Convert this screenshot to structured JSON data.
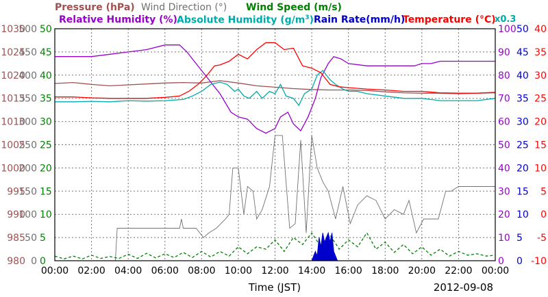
{
  "chart_data": {
    "type": "line",
    "title_row1": {
      "pressure": "Pressure (hPa)",
      "wind_dir": "Wind Direction (°)",
      "wind_speed": "Wind Speed (m/s)"
    },
    "title_row2": {
      "rel_humidity": "Relative Humidity (%)",
      "abs_humidity": "Absolute Humidity (g/m",
      "abs_humidity_sup": "3",
      "abs_humidity_end": ")",
      "rain_rate": "Rain Rate(mm/h)",
      "temperature": "Temperature (°C)",
      "scale_note": "x0.3"
    },
    "xlabel": "Time (JST)",
    "date": "2012-09-08",
    "x_ticks": [
      "00:00",
      "02:00",
      "04:00",
      "06:00",
      "08:00",
      "10:00",
      "12:00",
      "14:00",
      "16:00",
      "18:00",
      "20:00",
      "22:00",
      "00:00"
    ],
    "axes": {
      "pressure": {
        "color": "#a05050",
        "ticks": [
          "980",
          "985",
          "990",
          "995",
          "1000",
          "1005",
          "1010",
          "1015",
          "1020",
          "1025",
          "1030"
        ],
        "range": [
          980,
          1030
        ]
      },
      "wind_dir": {
        "color": "#707070",
        "ticks": [
          "0",
          "50",
          "100",
          "150",
          "200",
          "250",
          "300",
          "350",
          "400",
          "450",
          "500"
        ],
        "range": [
          0,
          500
        ]
      },
      "wind_speed": {
        "color": "#008000",
        "ticks": [
          "0",
          "5",
          "10",
          "15",
          "20",
          "25",
          "30",
          "35",
          "40",
          "45",
          "50"
        ],
        "range": [
          0,
          50
        ]
      },
      "rel_humidity": {
        "color": "#9900cc",
        "ticks": [
          "0",
          "10",
          "20",
          "30",
          "40",
          "50",
          "60",
          "70",
          "80",
          "90",
          "100"
        ],
        "range": [
          0,
          100
        ]
      },
      "rain_rate": {
        "color": "#0000cc",
        "ticks": [
          "0",
          "5",
          "10",
          "15",
          "20",
          "25",
          "30",
          "35",
          "40",
          "45",
          "50"
        ],
        "range": [
          0,
          50
        ]
      },
      "temperature": {
        "color": "#ff0000",
        "ticks": [
          "-10",
          "-5",
          "0",
          "5",
          "10",
          "15",
          "20",
          "25",
          "30",
          "35",
          "40"
        ],
        "range": [
          -10,
          40
        ]
      }
    },
    "series": [
      {
        "key": "pressure",
        "color": "#a05050",
        "x": [
          0,
          1,
          2,
          3,
          4,
          5,
          6,
          7,
          8,
          9,
          10,
          11,
          12,
          13,
          14,
          15,
          16,
          17,
          18,
          19,
          20,
          21,
          22,
          23,
          24
        ],
        "y": [
          1018.2,
          1018.4,
          1018.0,
          1017.7,
          1017.9,
          1018.1,
          1018.3,
          1018.4,
          1018.3,
          1018.8,
          1018.3,
          1017.7,
          1017.4,
          1017.1,
          1016.9,
          1016.8,
          1016.8,
          1016.7,
          1016.4,
          1016.2,
          1016.1,
          1016.1,
          1016.0,
          1016.1,
          1016.2
        ]
      },
      {
        "key": "wind_dir",
        "color": "#707070",
        "x": [
          0,
          3.3,
          3.4,
          5,
          6.8,
          6.9,
          7.0,
          7.7,
          8.1,
          8.4,
          8.8,
          9.3,
          9.5,
          9.7,
          10,
          10.3,
          10.5,
          10.8,
          11.0,
          11.3,
          11.7,
          12.0,
          12.4,
          12.8,
          13.1,
          13.4,
          13.7,
          14.0,
          14.3,
          14.6,
          14.9,
          15.3,
          15.7,
          16.1,
          16.5,
          17.0,
          17.5,
          18.0,
          18.5,
          19.0,
          19.3,
          19.7,
          20.1,
          20.5,
          20.9,
          21.3,
          21.6,
          22,
          23,
          24
        ],
        "y": [
          0,
          0,
          70,
          70,
          70,
          90,
          70,
          70,
          50,
          60,
          70,
          90,
          100,
          200,
          200,
          100,
          160,
          150,
          90,
          110,
          160,
          270,
          270,
          70,
          80,
          260,
          60,
          270,
          200,
          170,
          150,
          90,
          160,
          80,
          120,
          140,
          130,
          90,
          110,
          100,
          130,
          60,
          90,
          90,
          90,
          150,
          150,
          160,
          160,
          160
        ]
      },
      {
        "key": "wind_speed",
        "color": "#008000",
        "dash": true,
        "x": [
          0,
          0.5,
          1,
          1.5,
          2,
          2.5,
          3,
          3.5,
          4,
          4.5,
          5,
          5.5,
          6,
          6.5,
          7,
          7.5,
          8,
          8.5,
          9,
          9.5,
          10,
          10.5,
          11,
          11.5,
          12,
          12.5,
          13,
          13.5,
          14,
          14.5,
          15,
          15.5,
          16,
          16.5,
          17,
          17.5,
          18,
          18.5,
          19,
          19.5,
          20,
          20.5,
          21,
          21.5,
          22,
          22.5,
          23,
          23.5,
          24
        ],
        "y": [
          1,
          0.4,
          1,
          0.4,
          1.2,
          0.5,
          0.9,
          0.5,
          1.4,
          0.5,
          1.6,
          0.6,
          1.5,
          0.7,
          1.8,
          0.7,
          2,
          0.8,
          2,
          1,
          3,
          1.5,
          3,
          2.5,
          4.5,
          2,
          5,
          3.5,
          6,
          3,
          5.5,
          2.5,
          4.5,
          3,
          6,
          2.5,
          4,
          1.8,
          3.5,
          1.5,
          3,
          1.2,
          2.5,
          1,
          2,
          1.2,
          1.5,
          1,
          1.2
        ]
      },
      {
        "key": "rel_humidity",
        "color": "#9900cc",
        "x": [
          0,
          1,
          2,
          3,
          4,
          5,
          6,
          6.8,
          7.2,
          7.5,
          8,
          8.5,
          9,
          9.3,
          9.6,
          10,
          10.5,
          11,
          11.5,
          12,
          12.3,
          12.7,
          13,
          13.4,
          13.8,
          14.2,
          14.5,
          14.9,
          15.2,
          15.6,
          16,
          17,
          18,
          19,
          19.6,
          20,
          20.5,
          21,
          21.5,
          22,
          23,
          24
        ],
        "y": [
          88,
          88,
          88,
          89,
          90,
          91,
          93,
          93,
          90,
          87,
          82,
          77,
          72,
          68,
          64,
          62,
          61,
          57,
          55,
          57,
          62,
          64,
          59,
          56,
          62,
          70,
          79,
          85,
          88,
          87,
          85,
          84,
          84,
          84,
          84,
          85,
          85,
          86,
          86,
          86,
          86,
          86
        ]
      },
      {
        "key": "abs_humidity",
        "color": "#00aaaa",
        "x": [
          0,
          1,
          2,
          3,
          4,
          5,
          6,
          7,
          7.5,
          8,
          8.5,
          9,
          9.4,
          9.8,
          10,
          10.3,
          10.6,
          11,
          11.3,
          11.7,
          12,
          12.3,
          12.6,
          13,
          13.3,
          13.6,
          14,
          14.3,
          14.6,
          15,
          15.3,
          15.7,
          16,
          16.5,
          17,
          18,
          19,
          20,
          21,
          22,
          23,
          24
        ],
        "y": [
          68.5,
          68.5,
          68.7,
          68.5,
          69,
          68.8,
          69,
          69.5,
          71,
          73,
          76,
          77,
          76,
          73,
          74,
          71,
          70,
          73,
          70,
          73,
          72,
          76,
          71,
          70,
          67,
          72,
          74,
          80,
          82,
          78,
          76,
          74,
          73,
          73,
          72,
          71,
          70,
          70,
          69,
          69,
          69,
          70
        ]
      },
      {
        "key": "rain_rate",
        "color": "#0000cc",
        "fill": true,
        "x": [
          0,
          14.0,
          14.2,
          14.3,
          14.4,
          14.5,
          14.6,
          14.7,
          14.8,
          14.9,
          15.0,
          15.1,
          15.2,
          15.3,
          15.4,
          24
        ],
        "y": [
          0,
          0,
          2,
          1,
          5,
          3,
          6,
          4,
          5,
          6,
          4,
          6,
          2,
          1,
          0,
          0
        ]
      },
      {
        "key": "temperature",
        "color": "#ff0000",
        "x": [
          0,
          1,
          2,
          3,
          4,
          5,
          6,
          6.8,
          7.3,
          7.8,
          8.3,
          8.7,
          9,
          9.5,
          10,
          10.5,
          11,
          11.5,
          12,
          12.5,
          13,
          13.5,
          14,
          14.5,
          15,
          15.5,
          16,
          17,
          18,
          19,
          20,
          21,
          22,
          23,
          24
        ],
        "y": [
          25.3,
          25.3,
          25.1,
          25,
          25,
          25,
          25.2,
          25.5,
          26.5,
          28,
          30,
          32,
          32.2,
          33,
          34.5,
          33.5,
          35.5,
          37,
          37,
          35.5,
          35.8,
          32,
          31.5,
          30.5,
          28,
          27.5,
          27.3,
          27,
          26.8,
          26.5,
          26.5,
          26.2,
          26.1,
          26.1,
          26.3
        ]
      }
    ]
  }
}
